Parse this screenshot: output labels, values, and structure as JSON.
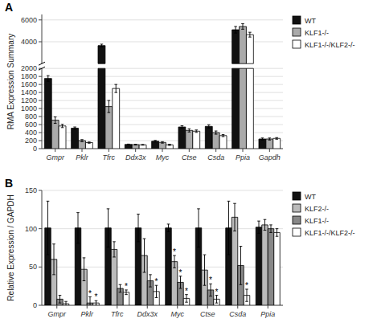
{
  "chart_data": [
    {
      "type": "bar",
      "title": "A",
      "ylabel": "RMA Expression Summary",
      "categories": [
        "Gmpr",
        "Pklr",
        "Tfrc",
        "Ddx3x",
        "Myc",
        "Ctse",
        "Csda",
        "Ppia",
        "Gapdh"
      ],
      "series": [
        {
          "name": "WT",
          "color": "#111111",
          "values": [
            1750,
            510,
            3650,
            105,
            185,
            540,
            555,
            5100,
            240
          ],
          "errors": [
            70,
            30,
            130,
            8,
            20,
            30,
            40,
            300,
            25
          ]
        },
        {
          "name": "KLF1-/-",
          "color": "#aaaaaa",
          "values": [
            710,
            200,
            1050,
            100,
            155,
            455,
            400,
            5400,
            240
          ],
          "errors": [
            80,
            25,
            150,
            10,
            18,
            40,
            40,
            250,
            25
          ]
        },
        {
          "name": "KLF1-/-/KLF2-/-",
          "color": "#ffffff",
          "values": [
            565,
            150,
            1500,
            95,
            95,
            435,
            325,
            4650,
            255
          ],
          "errors": [
            40,
            15,
            100,
            8,
            15,
            30,
            25,
            220,
            20
          ]
        }
      ],
      "ylim": [
        0,
        6500
      ],
      "yticks": [
        0,
        200,
        400,
        600,
        800,
        1000,
        1200,
        1400,
        1600,
        1800,
        2000,
        4000,
        6000
      ],
      "grid": true,
      "legend": "right"
    },
    {
      "type": "bar",
      "title": "B",
      "ylabel": "Relative Expression / GAPDH",
      "categories": [
        "Gmpr",
        "Pklr",
        "Tfrc",
        "Ddx3x",
        "Myc",
        "Ctse",
        "Csda",
        "Ppia"
      ],
      "series": [
        {
          "name": "WT",
          "color": "#111111",
          "values": [
            101,
            101,
            101,
            101,
            101,
            101,
            101,
            102
          ],
          "errors": [
            35,
            20,
            25,
            18,
            5,
            25,
            35,
            8
          ]
        },
        {
          "name": "KLF2-/-",
          "color": "#bbbbbb",
          "values": [
            60,
            47,
            73,
            65,
            57,
            46,
            115,
            105
          ],
          "errors": [
            20,
            15,
            10,
            22,
            8,
            20,
            18,
            7
          ],
          "annotations": [
            null,
            null,
            null,
            null,
            "*",
            null,
            null,
            null
          ]
        },
        {
          "name": "KLF1-/-",
          "color": "#888888",
          "values": [
            8,
            3,
            22,
            32,
            30,
            20,
            52,
            100
          ],
          "errors": [
            5,
            8,
            5,
            8,
            8,
            8,
            25,
            5
          ],
          "annotations": [
            null,
            "*",
            null,
            null,
            "*",
            "*",
            null,
            null
          ]
        },
        {
          "name": "KLF1-/-/KLF2-/-",
          "color": "#ffffff",
          "values": [
            2,
            3,
            17,
            18,
            9,
            8,
            13,
            95
          ],
          "errors": [
            3,
            3,
            3,
            8,
            5,
            5,
            8,
            5
          ],
          "annotations": [
            null,
            "*",
            "*",
            "*",
            "*",
            "*",
            "*",
            null
          ]
        }
      ],
      "ylim": [
        0,
        150
      ],
      "yticks": [
        0,
        50,
        100,
        150
      ],
      "grid": true,
      "legend": "right"
    }
  ]
}
